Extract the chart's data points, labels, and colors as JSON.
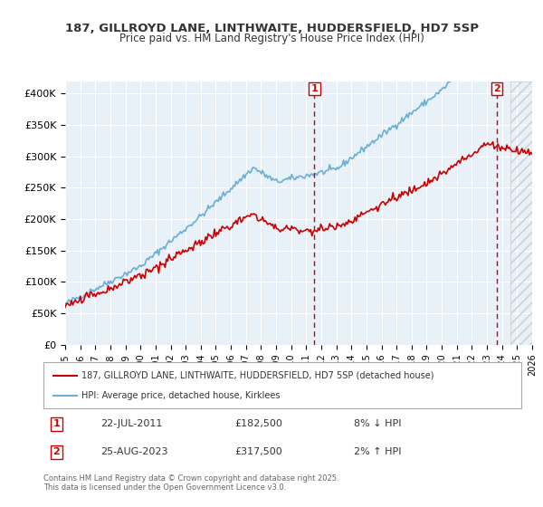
{
  "title_line1": "187, GILLROYD LANE, LINTHWAITE, HUDDERSFIELD, HD7 5SP",
  "title_line2": "Price paid vs. HM Land Registry's House Price Index (HPI)",
  "ylabel": "",
  "xlabel": "",
  "ylim": [
    0,
    420000
  ],
  "yticks": [
    0,
    50000,
    100000,
    150000,
    200000,
    250000,
    300000,
    350000,
    400000
  ],
  "ytick_labels": [
    "£0",
    "£50K",
    "£100K",
    "£150K",
    "£200K",
    "£250K",
    "£300K",
    "£350K",
    "£400K"
  ],
  "x_start_year": 1995,
  "x_end_year": 2026,
  "hpi_color": "#6baed6",
  "price_color": "#cc0000",
  "sale1_year": 2011.55,
  "sale1_price": 182500,
  "sale2_year": 2023.65,
  "sale2_price": 317500,
  "legend_label1": "187, GILLROYD LANE, LINTHWAITE, HUDDERSFIELD, HD7 5SP (detached house)",
  "legend_label2": "HPI: Average price, detached house, Kirklees",
  "annotation1_label": "1",
  "annotation1_date": "22-JUL-2011",
  "annotation1_price": "£182,500",
  "annotation1_note": "8% ↓ HPI",
  "annotation2_label": "2",
  "annotation2_date": "25-AUG-2023",
  "annotation2_price": "£317,500",
  "annotation2_note": "2% ↑ HPI",
  "footer": "Contains HM Land Registry data © Crown copyright and database right 2025.\nThis data is licensed under the Open Government Licence v3.0.",
  "bg_color": "#ddeeff",
  "plot_bg_color": "#e8f0f8",
  "hatch_color": "#cccccc"
}
